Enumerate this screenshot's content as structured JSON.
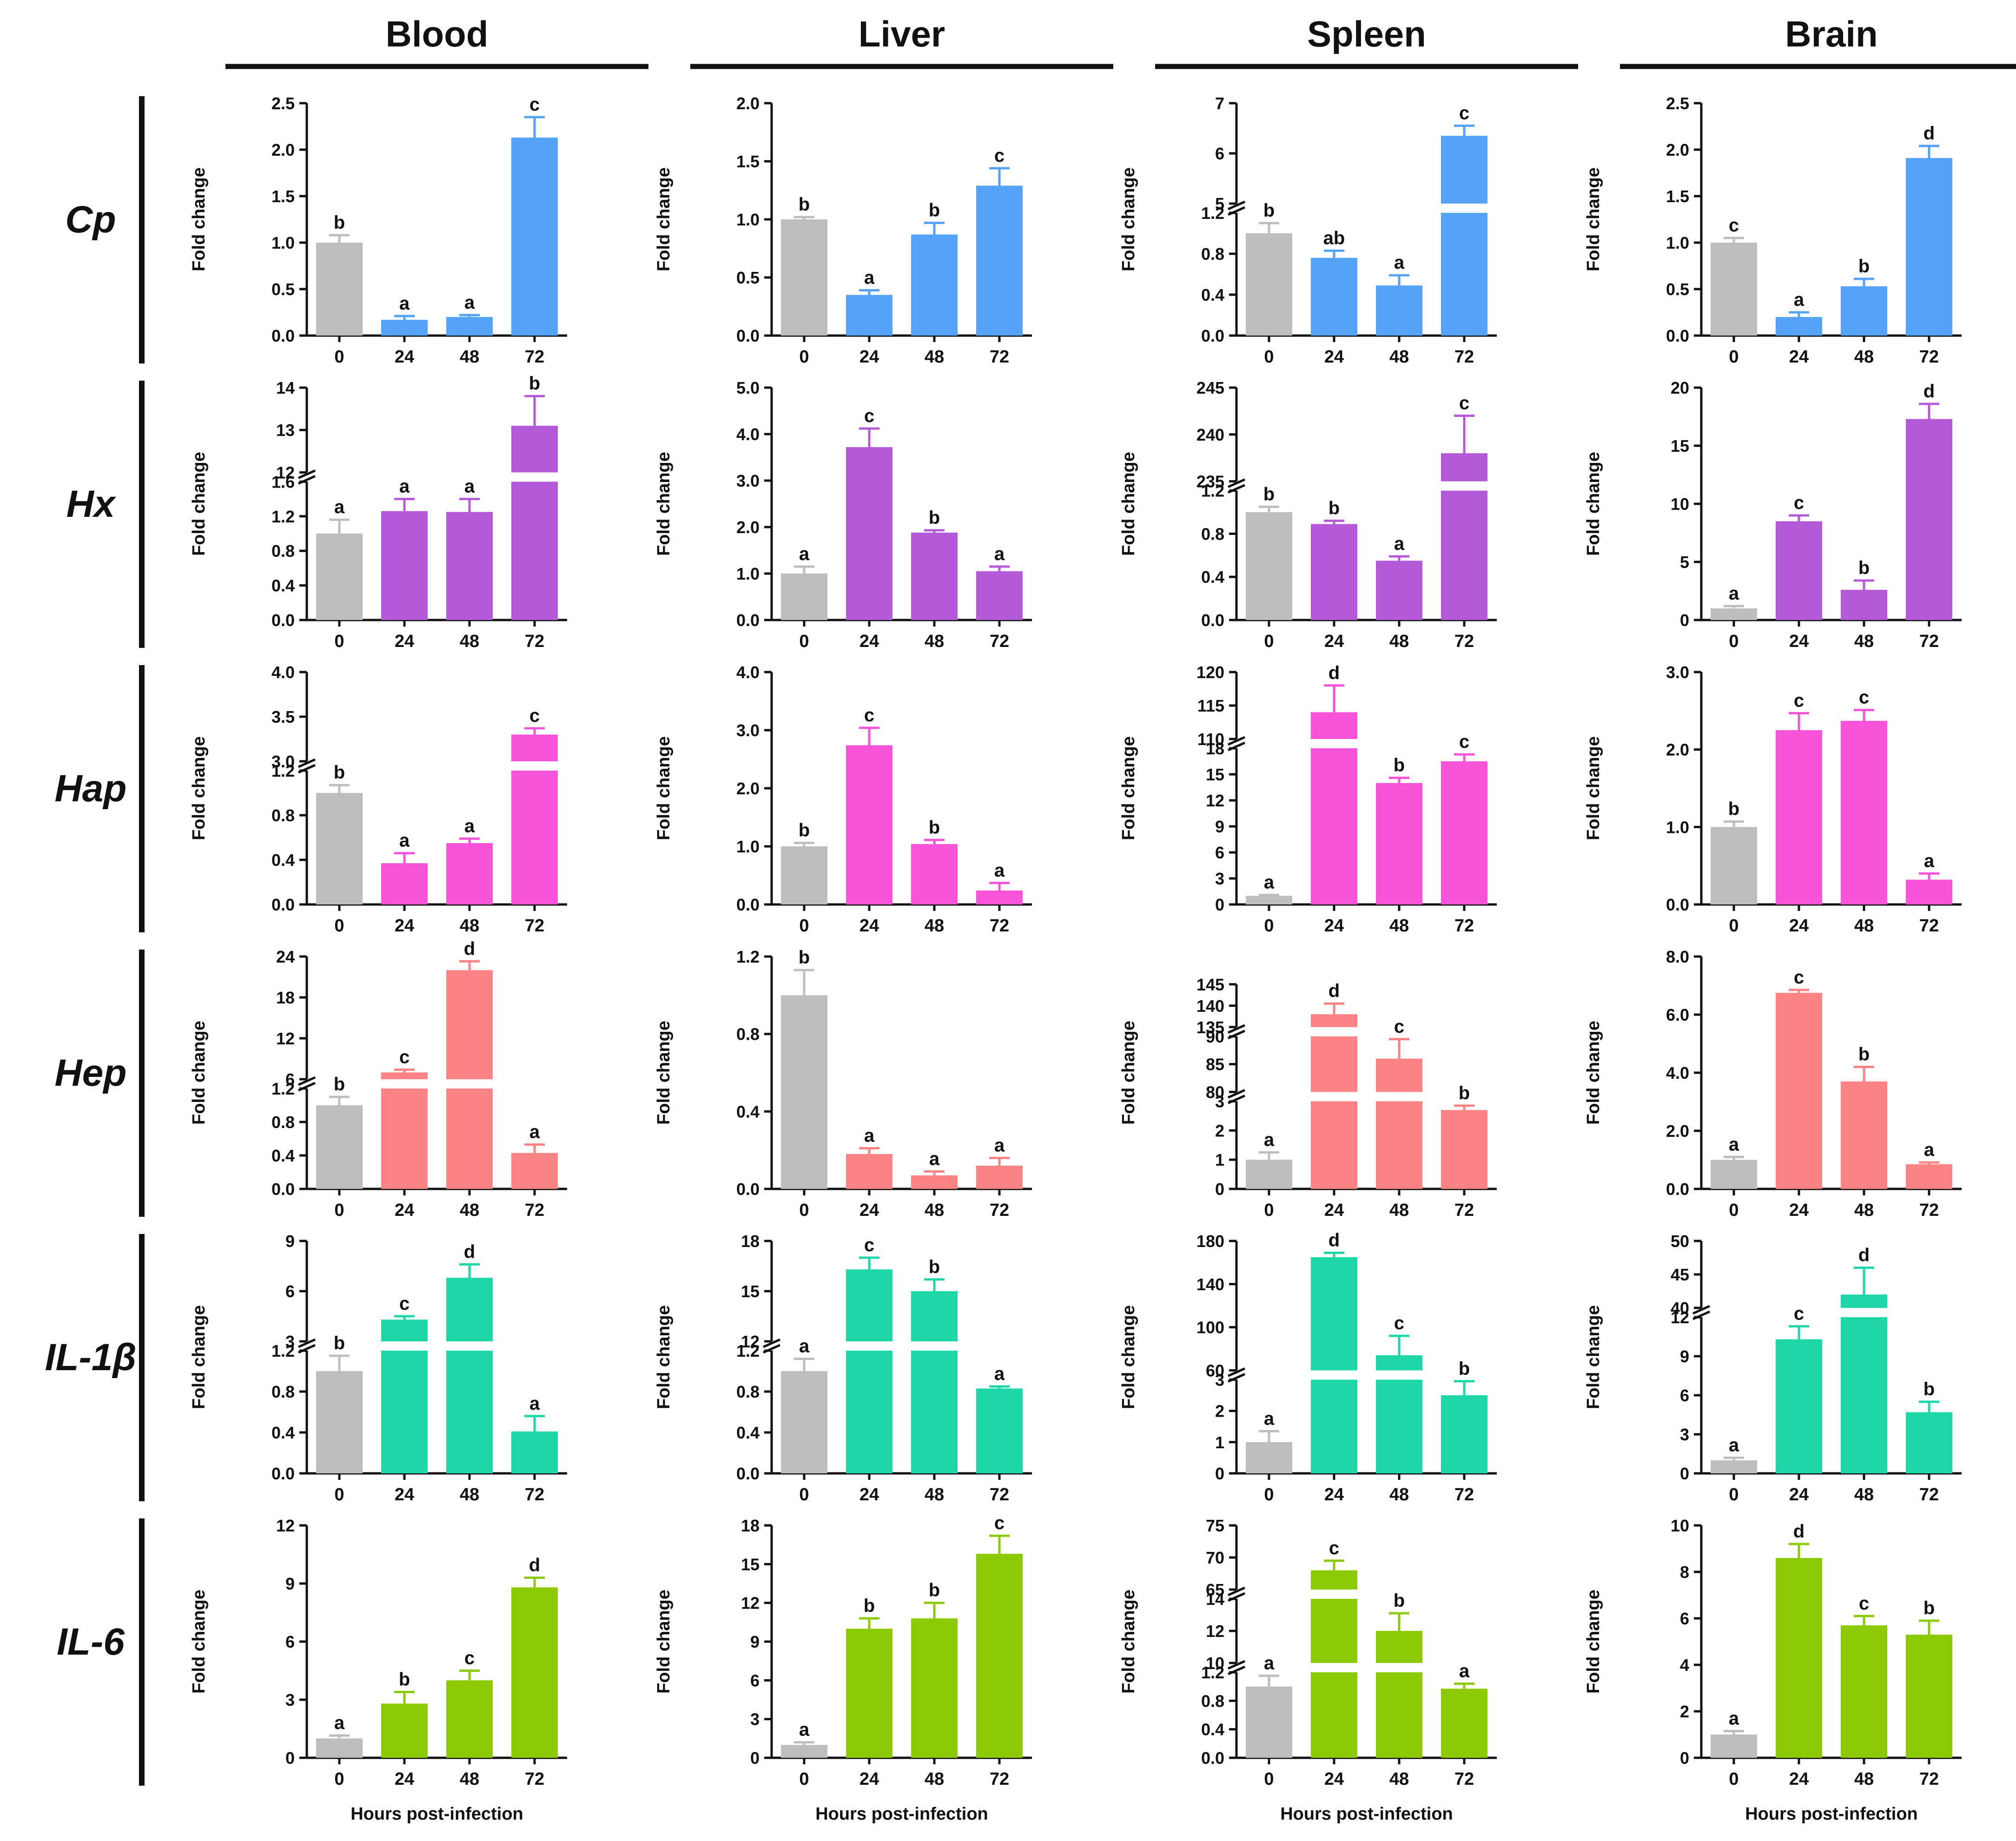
{
  "figure": {
    "xlabel": "Hours post-infection",
    "ylabel": "Fold change",
    "columns": [
      "Blood",
      "Liver",
      "Spleen",
      "Brain"
    ],
    "rows": [
      "Cp",
      "Hx",
      "Hap",
      "Hep",
      "IL-1β",
      "IL-6"
    ],
    "categories": [
      "0",
      "24",
      "48",
      "72"
    ]
  },
  "colors": {
    "control": "#bdbdbd",
    "Cp": "#55a3f8",
    "Hx": "#b45ad8",
    "Hap": "#f753d8",
    "Hep": "#fb8383",
    "IL-1β": "#1ed7a9",
    "IL-6": "#8ccb04"
  },
  "chart_data": [
    {
      "type": "bar",
      "title": "Blood — Cp",
      "row": 0,
      "col": 0,
      "categories": [
        "0",
        "24",
        "48",
        "72"
      ],
      "values": [
        1.0,
        0.17,
        0.2,
        2.13
      ],
      "errors": [
        0.08,
        0.04,
        0.02,
        0.22
      ],
      "letters": [
        "b",
        "a",
        "a",
        "c"
      ],
      "ylabel": "Fold change",
      "segments": [
        {
          "lo": 0,
          "hi": 2.5,
          "ticks": [
            "0.0",
            "0.5",
            "1.0",
            "1.5",
            "2.0",
            "2.5"
          ],
          "frac": 1
        }
      ]
    },
    {
      "type": "bar",
      "title": "Liver — Cp",
      "row": 0,
      "col": 1,
      "categories": [
        "0",
        "24",
        "48",
        "72"
      ],
      "values": [
        1.0,
        0.35,
        0.87,
        1.29
      ],
      "errors": [
        0.02,
        0.04,
        0.1,
        0.15
      ],
      "letters": [
        "b",
        "a",
        "b",
        "c"
      ],
      "ylabel": "Fold change",
      "segments": [
        {
          "lo": 0,
          "hi": 2.0,
          "ticks": [
            "0.0",
            "0.5",
            "1.0",
            "1.5",
            "2.0"
          ],
          "frac": 1
        }
      ]
    },
    {
      "type": "bar",
      "title": "Spleen — Cp",
      "row": 0,
      "col": 2,
      "categories": [
        "0",
        "24",
        "48",
        "72"
      ],
      "values": [
        1.0,
        0.76,
        0.49,
        6.35
      ],
      "errors": [
        0.1,
        0.07,
        0.1,
        0.2
      ],
      "letters": [
        "b",
        "ab",
        "a",
        "c"
      ],
      "ylabel": "Fold change",
      "segments": [
        {
          "lo": 0,
          "hi": 1.2,
          "ticks": [
            "0.0",
            "0.4",
            "0.8",
            "1.2"
          ],
          "frac": 0.55
        },
        {
          "lo": 5,
          "hi": 7,
          "ticks": [
            "5",
            "6",
            "7"
          ],
          "frac": 0.45
        }
      ]
    },
    {
      "type": "bar",
      "title": "Brain — Cp",
      "row": 0,
      "col": 3,
      "categories": [
        "0",
        "24",
        "48",
        "72"
      ],
      "values": [
        1.0,
        0.2,
        0.53,
        1.91
      ],
      "errors": [
        0.05,
        0.05,
        0.08,
        0.13
      ],
      "letters": [
        "c",
        "a",
        "b",
        "d"
      ],
      "ylabel": "Fold change",
      "segments": [
        {
          "lo": 0,
          "hi": 2.5,
          "ticks": [
            "0.0",
            "0.5",
            "1.0",
            "1.5",
            "2.0",
            "2.5"
          ],
          "frac": 1
        }
      ]
    },
    {
      "type": "bar",
      "title": "Blood — Hx",
      "row": 1,
      "col": 0,
      "categories": [
        "0",
        "24",
        "48",
        "72"
      ],
      "values": [
        1.0,
        1.26,
        1.25,
        13.1
      ],
      "errors": [
        0.16,
        0.14,
        0.15,
        0.7
      ],
      "letters": [
        "a",
        "a",
        "a",
        "b"
      ],
      "ylabel": "Fold change",
      "segments": [
        {
          "lo": 0,
          "hi": 1.6,
          "ticks": [
            "0.0",
            "0.4",
            "0.8",
            "1.2",
            "1.6"
          ],
          "frac": 0.62
        },
        {
          "lo": 12,
          "hi": 14,
          "ticks": [
            "12",
            "13",
            "14"
          ],
          "frac": 0.38
        }
      ]
    },
    {
      "type": "bar",
      "title": "Liver — Hx",
      "row": 1,
      "col": 1,
      "categories": [
        "0",
        "24",
        "48",
        "72"
      ],
      "values": [
        1.0,
        3.72,
        1.88,
        1.05
      ],
      "errors": [
        0.15,
        0.4,
        0.05,
        0.1
      ],
      "letters": [
        "a",
        "c",
        "b",
        "a"
      ],
      "ylabel": "Fold change",
      "segments": [
        {
          "lo": 0,
          "hi": 5,
          "ticks": [
            "0.0",
            "1.0",
            "2.0",
            "3.0",
            "4.0",
            "5.0"
          ],
          "frac": 1
        }
      ]
    },
    {
      "type": "bar",
      "title": "Spleen — Hx",
      "row": 1,
      "col": 2,
      "categories": [
        "0",
        "24",
        "48",
        "72"
      ],
      "values": [
        1.0,
        0.89,
        0.55,
        238
      ],
      "errors": [
        0.05,
        0.03,
        0.04,
        4.0
      ],
      "letters": [
        "b",
        "b",
        "a",
        "c"
      ],
      "ylabel": "Fold change",
      "segments": [
        {
          "lo": 0,
          "hi": 1.2,
          "ticks": [
            "0.0",
            "0.4",
            "0.8",
            "1.2"
          ],
          "frac": 0.58
        },
        {
          "lo": 235,
          "hi": 245,
          "ticks": [
            "235",
            "240",
            "245"
          ],
          "frac": 0.42
        }
      ]
    },
    {
      "type": "bar",
      "title": "Brain — Hx",
      "row": 1,
      "col": 3,
      "categories": [
        "0",
        "24",
        "48",
        "72"
      ],
      "values": [
        1.0,
        8.5,
        2.6,
        17.3
      ],
      "errors": [
        0.2,
        0.5,
        0.8,
        1.3
      ],
      "letters": [
        "a",
        "c",
        "b",
        "d"
      ],
      "ylabel": "Fold change",
      "segments": [
        {
          "lo": 0,
          "hi": 20,
          "ticks": [
            "0",
            "5",
            "10",
            "15",
            "20"
          ],
          "frac": 1
        }
      ]
    },
    {
      "type": "bar",
      "title": "Blood — Hap",
      "row": 2,
      "col": 0,
      "categories": [
        "0",
        "24",
        "48",
        "72"
      ],
      "values": [
        1.0,
        0.37,
        0.55,
        3.3
      ],
      "errors": [
        0.07,
        0.09,
        0.04,
        0.07
      ],
      "letters": [
        "b",
        "a",
        "a",
        "c"
      ],
      "ylabel": "Fold change",
      "segments": [
        {
          "lo": 0,
          "hi": 1.2,
          "ticks": [
            "0.0",
            "0.4",
            "0.8",
            "1.2"
          ],
          "frac": 0.6
        },
        {
          "lo": 3,
          "hi": 4,
          "ticks": [
            "3.0",
            "3.5",
            "4.0"
          ],
          "frac": 0.4
        }
      ]
    },
    {
      "type": "bar",
      "title": "Liver — Hap",
      "row": 2,
      "col": 1,
      "categories": [
        "0",
        "24",
        "48",
        "72"
      ],
      "values": [
        1.0,
        2.74,
        1.04,
        0.24
      ],
      "errors": [
        0.06,
        0.3,
        0.07,
        0.13
      ],
      "letters": [
        "b",
        "c",
        "b",
        "a"
      ],
      "ylabel": "Fold change",
      "segments": [
        {
          "lo": 0,
          "hi": 4,
          "ticks": [
            "0.0",
            "1.0",
            "2.0",
            "3.0",
            "4.0"
          ],
          "frac": 1
        }
      ]
    },
    {
      "type": "bar",
      "title": "Spleen — Hap",
      "row": 2,
      "col": 2,
      "categories": [
        "0",
        "24",
        "48",
        "72"
      ],
      "values": [
        1.0,
        114,
        14,
        16.5
      ],
      "errors": [
        0.1,
        4.0,
        0.6,
        0.8
      ],
      "letters": [
        "a",
        "d",
        "b",
        "c"
      ],
      "ylabel": "Fold change",
      "segments": [
        {
          "lo": 0,
          "hi": 18,
          "ticks": [
            "0",
            "3",
            "6",
            "9",
            "12",
            "15",
            "18"
          ],
          "frac": 0.7
        },
        {
          "lo": 110,
          "hi": 120,
          "ticks": [
            "110",
            "115",
            "120"
          ],
          "frac": 0.3
        }
      ]
    },
    {
      "type": "bar",
      "title": "Brain — Hap",
      "row": 2,
      "col": 3,
      "categories": [
        "0",
        "24",
        "48",
        "72"
      ],
      "values": [
        1.0,
        2.25,
        2.37,
        0.32
      ],
      "errors": [
        0.07,
        0.22,
        0.14,
        0.08
      ],
      "letters": [
        "b",
        "c",
        "c",
        "a"
      ],
      "ylabel": "Fold change",
      "segments": [
        {
          "lo": 0,
          "hi": 3,
          "ticks": [
            "0.0",
            "1.0",
            "2.0",
            "3.0"
          ],
          "frac": 1
        }
      ]
    },
    {
      "type": "bar",
      "title": "Blood — Hep",
      "row": 3,
      "col": 0,
      "categories": [
        "0",
        "24",
        "48",
        "72"
      ],
      "values": [
        1.0,
        7,
        22,
        0.43
      ],
      "errors": [
        0.1,
        0.4,
        1.3,
        0.1
      ],
      "letters": [
        "b",
        "c",
        "d",
        "a"
      ],
      "ylabel": "Fold change",
      "segments": [
        {
          "lo": 0,
          "hi": 1.2,
          "ticks": [
            "0.0",
            "0.4",
            "0.8",
            "1.2"
          ],
          "frac": 0.45
        },
        {
          "lo": 6,
          "hi": 24,
          "ticks": [
            "6",
            "12",
            "18",
            "24"
          ],
          "frac": 0.55
        }
      ]
    },
    {
      "type": "bar",
      "title": "Liver — Hep",
      "row": 3,
      "col": 1,
      "categories": [
        "0",
        "24",
        "48",
        "72"
      ],
      "values": [
        1.0,
        0.18,
        0.07,
        0.12
      ],
      "errors": [
        0.13,
        0.03,
        0.02,
        0.04
      ],
      "letters": [
        "b",
        "a",
        "a",
        "a"
      ],
      "ylabel": "Fold change",
      "segments": [
        {
          "lo": 0,
          "hi": 1.2,
          "ticks": [
            "0.0",
            "0.4",
            "0.8",
            "1.2"
          ],
          "frac": 1
        }
      ]
    },
    {
      "type": "bar",
      "title": "Spleen — Hep",
      "row": 3,
      "col": 2,
      "categories": [
        "0",
        "24",
        "48",
        "72"
      ],
      "values": [
        1.0,
        138,
        86,
        2.7
      ],
      "errors": [
        0.25,
        2.5,
        3.5,
        0.15
      ],
      "letters": [
        "a",
        "d",
        "c",
        "b"
      ],
      "ylabel": "Fold change",
      "segments": [
        {
          "lo": 0,
          "hi": 3,
          "ticks": [
            "0",
            "1",
            "2",
            "3"
          ],
          "frac": 0.41
        },
        {
          "lo": 80,
          "hi": 90,
          "ticks": [
            "80",
            "85",
            "90"
          ],
          "frac": 0.26
        },
        {
          "lo": 135,
          "hi": 145,
          "ticks": [
            "135",
            "140",
            "145"
          ],
          "frac": 0.2
        }
      ]
    },
    {
      "type": "bar",
      "title": "Brain — Hep",
      "row": 3,
      "col": 3,
      "categories": [
        "0",
        "24",
        "48",
        "72"
      ],
      "values": [
        1.0,
        6.75,
        3.7,
        0.85
      ],
      "errors": [
        0.1,
        0.1,
        0.5,
        0.06
      ],
      "letters": [
        "a",
        "c",
        "b",
        "a"
      ],
      "ylabel": "Fold change",
      "segments": [
        {
          "lo": 0,
          "hi": 8,
          "ticks": [
            "0.0",
            "2.0",
            "4.0",
            "6.0",
            "8.0"
          ],
          "frac": 1
        }
      ]
    },
    {
      "type": "bar",
      "title": "Blood — IL-1β",
      "row": 4,
      "col": 0,
      "categories": [
        "0",
        "24",
        "48",
        "72"
      ],
      "values": [
        1.0,
        4.3,
        6.8,
        0.41
      ],
      "errors": [
        0.15,
        0.2,
        0.8,
        0.15
      ],
      "letters": [
        "b",
        "c",
        "d",
        "a"
      ],
      "ylabel": "Fold change",
      "segments": [
        {
          "lo": 0,
          "hi": 1.2,
          "ticks": [
            "0.0",
            "0.4",
            "0.8",
            "1.2"
          ],
          "frac": 0.55
        },
        {
          "lo": 3,
          "hi": 9,
          "ticks": [
            "3",
            "6",
            "9"
          ],
          "frac": 0.45
        }
      ]
    },
    {
      "type": "bar",
      "title": "Liver — IL-1β",
      "row": 4,
      "col": 1,
      "categories": [
        "0",
        "24",
        "48",
        "72"
      ],
      "values": [
        1.0,
        16.3,
        15,
        0.83
      ],
      "errors": [
        0.12,
        0.7,
        0.7,
        0.02
      ],
      "letters": [
        "a",
        "c",
        "b",
        "a"
      ],
      "ylabel": "Fold change",
      "segments": [
        {
          "lo": 0,
          "hi": 1.2,
          "ticks": [
            "0.0",
            "0.4",
            "0.8",
            "1.2"
          ],
          "frac": 0.55
        },
        {
          "lo": 12,
          "hi": 18,
          "ticks": [
            "12",
            "15",
            "18"
          ],
          "frac": 0.45
        }
      ]
    },
    {
      "type": "bar",
      "title": "Spleen — IL-1β",
      "row": 4,
      "col": 2,
      "categories": [
        "0",
        "24",
        "48",
        "72"
      ],
      "values": [
        1.0,
        165,
        74,
        2.5
      ],
      "errors": [
        0.35,
        4.0,
        18.0,
        0.45
      ],
      "letters": [
        "a",
        "d",
        "c",
        "b"
      ],
      "ylabel": "Fold change",
      "segments": [
        {
          "lo": 0,
          "hi": 3,
          "ticks": [
            "0",
            "1",
            "2",
            "3"
          ],
          "frac": 0.42
        },
        {
          "lo": 60,
          "hi": 180,
          "ticks": [
            "60",
            "100",
            "140",
            "180"
          ],
          "frac": 0.58
        }
      ]
    },
    {
      "type": "bar",
      "title": "Brain — IL-1β",
      "row": 4,
      "col": 3,
      "categories": [
        "0",
        "24",
        "48",
        "72"
      ],
      "values": [
        1.0,
        10.3,
        42,
        4.7
      ],
      "errors": [
        0.2,
        1.0,
        4.0,
        0.8
      ],
      "letters": [
        "a",
        "c",
        "d",
        "b"
      ],
      "ylabel": "Fold change",
      "segments": [
        {
          "lo": 0,
          "hi": 12,
          "ticks": [
            "0",
            "3",
            "6",
            "9",
            "12"
          ],
          "frac": 0.7
        },
        {
          "lo": 40,
          "hi": 50,
          "ticks": [
            "40",
            "45",
            "50"
          ],
          "frac": 0.3
        }
      ]
    },
    {
      "type": "bar",
      "title": "Blood — IL-6",
      "row": 5,
      "col": 0,
      "categories": [
        "0",
        "24",
        "48",
        "72"
      ],
      "values": [
        1.0,
        2.8,
        4.0,
        8.8
      ],
      "errors": [
        0.15,
        0.6,
        0.5,
        0.5
      ],
      "letters": [
        "a",
        "b",
        "c",
        "d"
      ],
      "ylabel": "Fold change",
      "segments": [
        {
          "lo": 0,
          "hi": 12,
          "ticks": [
            "0",
            "3",
            "6",
            "9",
            "12"
          ],
          "frac": 1
        }
      ]
    },
    {
      "type": "bar",
      "title": "Liver — IL-6",
      "row": 5,
      "col": 1,
      "categories": [
        "0",
        "24",
        "48",
        "72"
      ],
      "values": [
        1.0,
        10,
        10.8,
        15.8
      ],
      "errors": [
        0.2,
        0.8,
        1.2,
        1.4
      ],
      "letters": [
        "a",
        "b",
        "b",
        "c"
      ],
      "ylabel": "Fold change",
      "segments": [
        {
          "lo": 0,
          "hi": 18,
          "ticks": [
            "0",
            "3",
            "6",
            "9",
            "12",
            "15",
            "18"
          ],
          "frac": 1
        }
      ]
    },
    {
      "type": "bar",
      "title": "Spleen — IL-6",
      "row": 5,
      "col": 2,
      "categories": [
        "0",
        "24",
        "48",
        "72"
      ],
      "values": [
        1.0,
        68,
        12,
        0.97
      ],
      "errors": [
        0.15,
        1.5,
        1.1,
        0.07
      ],
      "letters": [
        "a",
        "c",
        "b",
        "a"
      ],
      "ylabel": "Fold change",
      "segments": [
        {
          "lo": 0,
          "hi": 1.2,
          "ticks": [
            "0.0",
            "0.4",
            "0.8",
            "1.2"
          ],
          "frac": 0.4
        },
        {
          "lo": 10,
          "hi": 14,
          "ticks": [
            "10",
            "12",
            "14"
          ],
          "frac": 0.3
        },
        {
          "lo": 65,
          "hi": 75,
          "ticks": [
            "65",
            "70",
            "75"
          ],
          "frac": 0.3
        }
      ]
    },
    {
      "type": "bar",
      "title": "Brain — IL-6",
      "row": 5,
      "col": 3,
      "categories": [
        "0",
        "24",
        "48",
        "72"
      ],
      "values": [
        1.0,
        8.6,
        5.7,
        5.3
      ],
      "errors": [
        0.15,
        0.6,
        0.4,
        0.6
      ],
      "letters": [
        "a",
        "d",
        "c",
        "b"
      ],
      "ylabel": "Fold change",
      "segments": [
        {
          "lo": 0,
          "hi": 10,
          "ticks": [
            "0",
            "2",
            "4",
            "6",
            "8",
            "10"
          ],
          "frac": 1
        }
      ]
    }
  ]
}
